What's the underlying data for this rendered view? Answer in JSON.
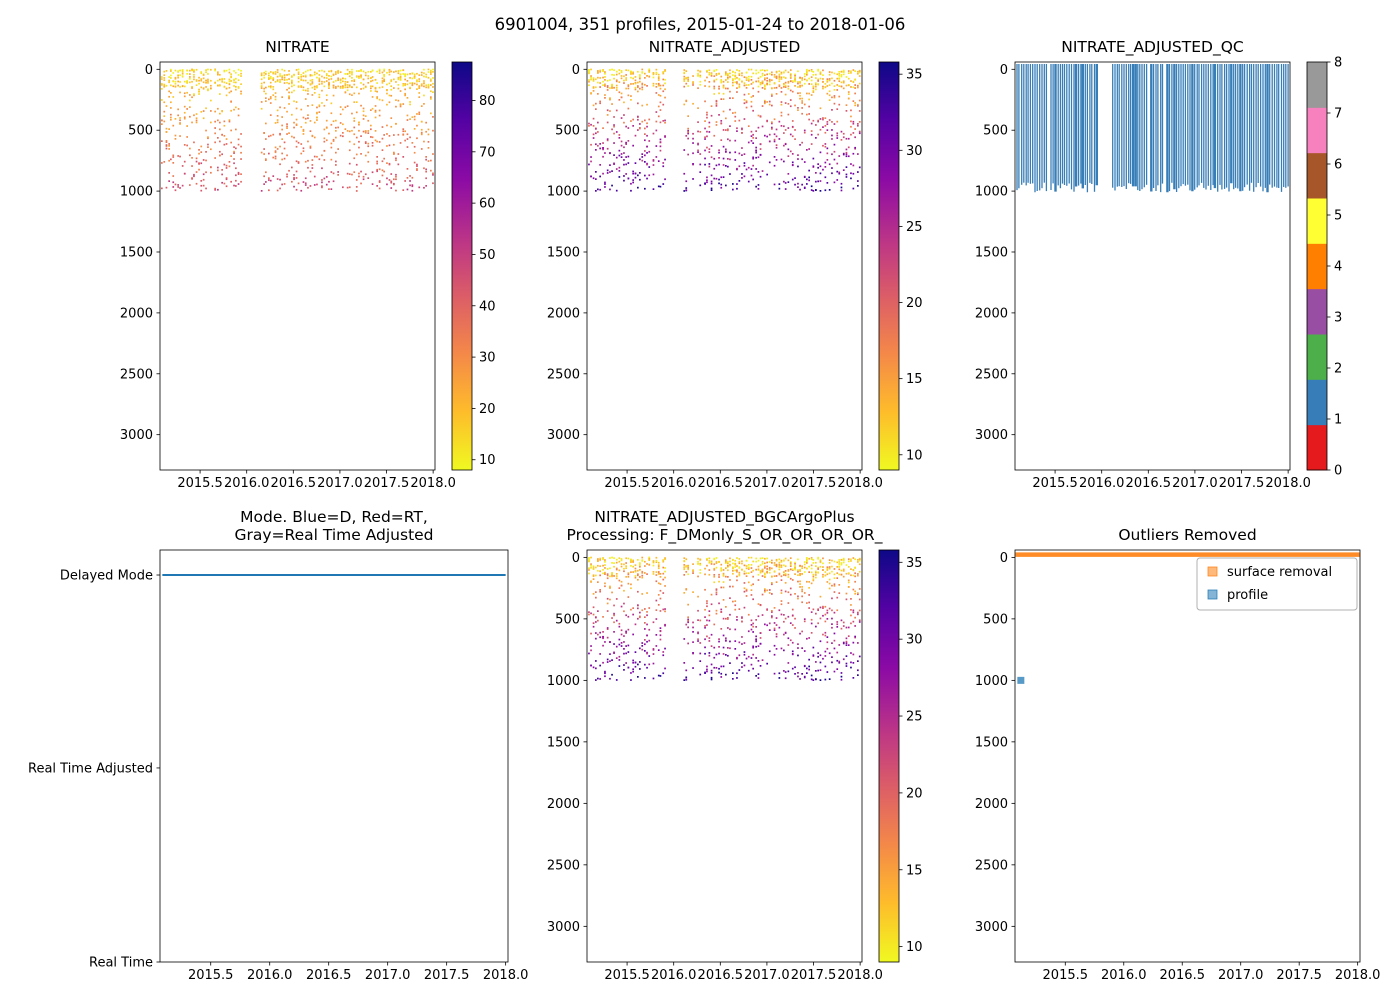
{
  "suptitle": "6901004, 351 profiles, 2015-01-24 to 2018-01-06",
  "chart_data": {
    "type": "scatter",
    "figure_kind": "argo-float-nitrate-overview-6-panels",
    "panels": [
      {
        "name": "nitrate",
        "type": "scatter",
        "title": "NITRATE",
        "x_tick_labels": [
          "2015.5",
          "2016.0",
          "2016.5",
          "2017.0",
          "2017.5",
          "2018.0"
        ],
        "x_tick_values": [
          2015.5,
          2016.0,
          2016.5,
          2017.0,
          2017.5,
          2018.0
        ],
        "xlim": [
          2015.07,
          2018.02
        ],
        "y_tick_labels": [
          "0",
          "500",
          "1000",
          "1500",
          "2000",
          "2500",
          "3000"
        ],
        "y_tick_values": [
          0,
          500,
          1000,
          1500,
          2000,
          2500,
          3000
        ],
        "ylim": [
          -60,
          3290
        ],
        "colorbar": {
          "style": "continuous",
          "cmap": "plasma_r",
          "vmin": 8,
          "vmax": 87.5,
          "tick_values": [
            10,
            20,
            30,
            40,
            50,
            60,
            70,
            80
          ],
          "tick_labels": [
            "10",
            "20",
            "30",
            "40",
            "50",
            "60",
            "70",
            "80"
          ]
        },
        "profiles": {
          "time_range": [
            2015.09,
            2018.0
          ],
          "gap": [
            2015.95,
            2016.11
          ],
          "count": 118,
          "points_per_profile": 12,
          "depth_max": 1000,
          "value_surface": 14,
          "value_deep": 46,
          "value_noise": 8,
          "seed": 11
        }
      },
      {
        "name": "nitrate_adjusted",
        "type": "scatter",
        "title": "NITRATE_ADJUSTED",
        "x_tick_labels": [
          "2015.5",
          "2016.0",
          "2016.5",
          "2017.0",
          "2017.5",
          "2018.0"
        ],
        "x_tick_values": [
          2015.5,
          2016.0,
          2016.5,
          2017.0,
          2017.5,
          2018.0
        ],
        "xlim": [
          2015.07,
          2018.02
        ],
        "y_tick_labels": [
          "0",
          "500",
          "1000",
          "1500",
          "2000",
          "2500",
          "3000"
        ],
        "y_tick_values": [
          0,
          500,
          1000,
          1500,
          2000,
          2500,
          3000
        ],
        "ylim": [
          -60,
          3290
        ],
        "colorbar": {
          "style": "continuous",
          "cmap": "plasma_r",
          "vmin": 9,
          "vmax": 35.8,
          "tick_values": [
            10,
            15,
            20,
            25,
            30,
            35
          ],
          "tick_labels": [
            "10",
            "15",
            "20",
            "25",
            "30",
            "35"
          ]
        },
        "profiles": {
          "time_range": [
            2015.09,
            2018.0
          ],
          "gap": [
            2015.95,
            2016.11
          ],
          "count": 118,
          "points_per_profile": 12,
          "depth_max": 1000,
          "value_surface": 11,
          "value_deep": 33,
          "value_noise": 4.5,
          "seed": 22
        }
      },
      {
        "name": "nitrate_adjusted_qc",
        "type": "qc",
        "title": "NITRATE_ADJUSTED_QC",
        "x_tick_labels": [
          "2015.5",
          "2016.0",
          "2016.5",
          "2017.0",
          "2017.5",
          "2018.0"
        ],
        "x_tick_values": [
          2015.5,
          2016.0,
          2016.5,
          2017.0,
          2017.5,
          2018.0
        ],
        "xlim": [
          2015.07,
          2018.02
        ],
        "y_tick_labels": [
          "0",
          "500",
          "1000",
          "1500",
          "2000",
          "2500",
          "3000"
        ],
        "y_tick_values": [
          0,
          500,
          1000,
          1500,
          2000,
          2500,
          3000
        ],
        "ylim": [
          -60,
          3290
        ],
        "colorbar": {
          "style": "discrete",
          "tick_labels": [
            "0",
            "1",
            "2",
            "3",
            "4",
            "5",
            "6",
            "7",
            "8"
          ],
          "colors": [
            "#e41a1c",
            "#377eb8",
            "#4daf4a",
            "#984ea3",
            "#ff7f00",
            "#ffff33",
            "#a65628",
            "#f781bf",
            "#999999"
          ]
        },
        "bars": {
          "color": "#377eb8",
          "time_range": [
            2015.09,
            2018.0
          ],
          "gap": [
            2015.95,
            2016.11
          ],
          "count": 120,
          "depth_bottom_range": [
            930,
            1010
          ],
          "seed": 5
        }
      },
      {
        "name": "mode",
        "type": "mode",
        "title": "Mode. Blue=D, Red=RT,",
        "title2": "Gray=Real Time Adjusted",
        "x_tick_labels": [
          "2015.5",
          "2016.0",
          "2016.5",
          "2017.0",
          "2017.5",
          "2018.0"
        ],
        "x_tick_values": [
          2015.5,
          2016.0,
          2016.5,
          2017.0,
          2017.5,
          2018.0
        ],
        "xlim": [
          2015.07,
          2018.02
        ],
        "categories": [
          "Delayed Mode",
          "Real Time Adjusted",
          "Real Time"
        ],
        "line": {
          "category_index": 0,
          "category": "Delayed Mode",
          "color": "#1f77b4",
          "time_range": [
            2015.09,
            2018.0
          ]
        }
      },
      {
        "name": "nitrate_adjusted_bgcargoplus",
        "type": "scatter",
        "title": "NITRATE_ADJUSTED_BGCArgoPlus",
        "title2": "Processing: F_DMonly_S_OR_OR_OR_OR_",
        "x_tick_labels": [
          "2015.5",
          "2016.0",
          "2016.5",
          "2017.0",
          "2017.5",
          "2018.0"
        ],
        "x_tick_values": [
          2015.5,
          2016.0,
          2016.5,
          2017.0,
          2017.5,
          2018.0
        ],
        "xlim": [
          2015.07,
          2018.02
        ],
        "y_tick_labels": [
          "0",
          "500",
          "1000",
          "1500",
          "2000",
          "2500",
          "3000"
        ],
        "y_tick_values": [
          0,
          500,
          1000,
          1500,
          2000,
          2500,
          3000
        ],
        "ylim": [
          -60,
          3290
        ],
        "colorbar": {
          "style": "continuous",
          "cmap": "plasma_r",
          "vmin": 9,
          "vmax": 35.8,
          "tick_values": [
            10,
            15,
            20,
            25,
            30,
            35
          ],
          "tick_labels": [
            "10",
            "15",
            "20",
            "25",
            "30",
            "35"
          ]
        },
        "profiles": {
          "time_range": [
            2015.09,
            2018.0
          ],
          "gap": [
            2015.95,
            2016.11
          ],
          "count": 118,
          "points_per_profile": 12,
          "depth_max": 1000,
          "value_surface": 11,
          "value_deep": 33,
          "value_noise": 4.5,
          "seed": 22
        }
      },
      {
        "name": "outliers_removed",
        "type": "outliers",
        "title": "Outliers Removed",
        "x_tick_labels": [
          "2015.5",
          "2016.0",
          "2016.5",
          "2017.0",
          "2017.5",
          "2018.0"
        ],
        "x_tick_values": [
          2015.5,
          2016.0,
          2016.5,
          2017.0,
          2017.5,
          2018.0
        ],
        "xlim": [
          2015.07,
          2018.02
        ],
        "y_tick_labels": [
          "0",
          "500",
          "1000",
          "1500",
          "2000",
          "2500",
          "3000"
        ],
        "y_tick_values": [
          0,
          500,
          1000,
          1500,
          2000,
          2500,
          3000
        ],
        "ylim": [
          -60,
          3290
        ],
        "legend": [
          {
            "label": "surface removal",
            "color": "#ff7f0e"
          },
          {
            "label": "profile",
            "color": "#1f77b4"
          }
        ],
        "surface_removal_line": {
          "depth": 0,
          "color": "#ff7f0e"
        },
        "profile_outlier": {
          "time": 2015.12,
          "depth": 1000,
          "color": "#1f77b4"
        }
      }
    ]
  }
}
